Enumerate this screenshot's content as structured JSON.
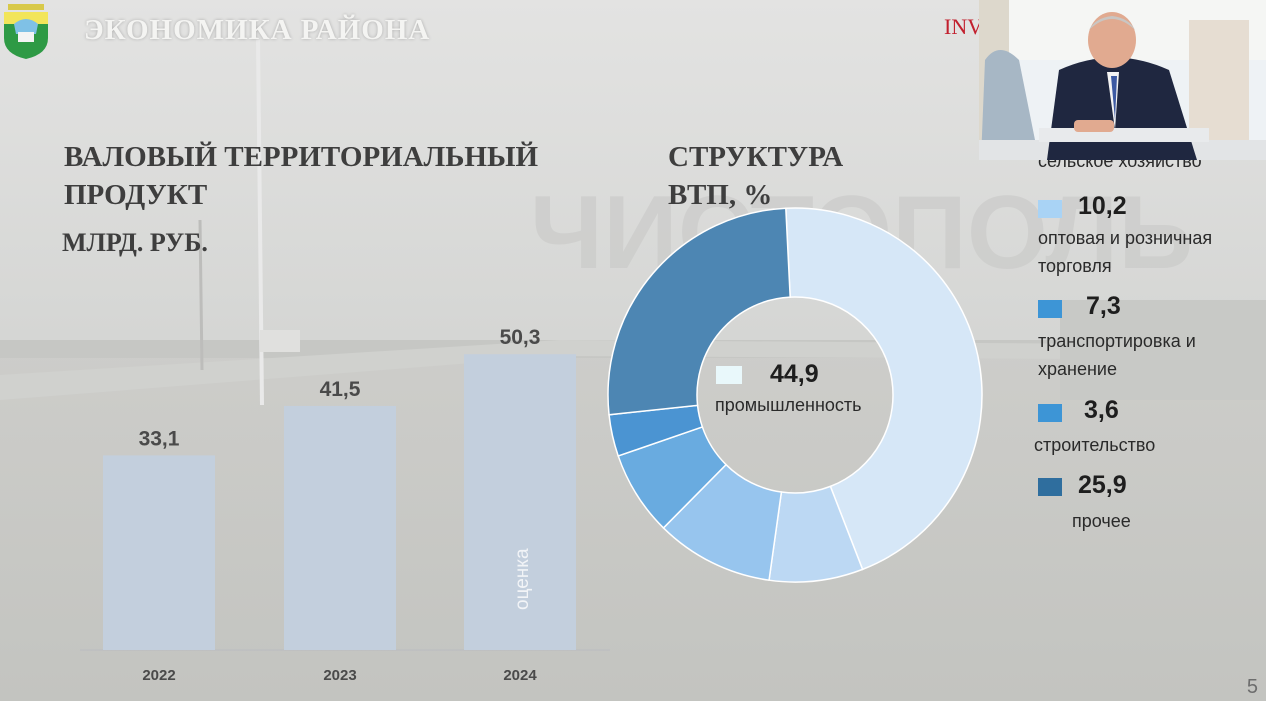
{
  "header": {
    "title": "ЭКОНОМИКА РАЙОНА",
    "brand_text": "INV"
  },
  "logo": {
    "icon": "coat-of-arms-icon"
  },
  "left_panel": {
    "heading_line1": "ВАЛОВЫЙ ТЕРРИТОРИАЛЬНЫЙ",
    "heading_line2": "ПРОДУКТ",
    "unit": "МЛРД. РУБ."
  },
  "right_panel": {
    "heading_line1": "СТРУКТУРА",
    "heading_line2": "ВТП, %"
  },
  "background": {
    "sign_text": "ЧИСТОПОЛЬ"
  },
  "chart_data": [
    {
      "type": "bar",
      "categories": [
        "2022",
        "2023",
        "2024"
      ],
      "values": [
        33.1,
        41.5,
        50.3
      ],
      "value_labels": [
        "33,1",
        "41,5",
        "50,3"
      ],
      "bar_note": "оценка",
      "note_category": "2024",
      "ylim": [
        0,
        60
      ],
      "bar_color": "#c3cfdd"
    },
    {
      "type": "pie",
      "donut": true,
      "slices": [
        {
          "label": "промышленность",
          "value": 44.9,
          "value_label": "44,9",
          "color": "#d6e7f7"
        },
        {
          "label": "сельское хозяйство",
          "value": 8.1,
          "value_label": "",
          "color": "#bcd8f3"
        },
        {
          "label": "оптовая и розничная торговля",
          "value": 10.2,
          "value_label": "10,2",
          "color": "#97c5ee"
        },
        {
          "label": "транспортировка и хранение",
          "value": 7.3,
          "value_label": "7,3",
          "color": "#69abe0"
        },
        {
          "label": "строительство",
          "value": 3.6,
          "value_label": "3,6",
          "color": "#4b94d2"
        },
        {
          "label": "прочее",
          "value": 25.9,
          "value_label": "25,9",
          "color": "#4d86b3"
        }
      ]
    }
  ],
  "legend": {
    "partial_top": "сельское хозяйство",
    "center_label": "промышленность",
    "center_value": "44,9",
    "items": [
      {
        "value": "10,2",
        "line1": "оптовая и розничная",
        "line2": "торговля",
        "color": "#a9d3f5"
      },
      {
        "value": "7,3",
        "line1": "транспортировка и",
        "line2": "хранение",
        "color": "#3d95d6"
      },
      {
        "value": "3,6",
        "line1": "строительство",
        "line2": "",
        "color": "#3d95d6"
      },
      {
        "value": "25,9",
        "line1": "прочее",
        "line2": "",
        "color": "#2f6e9e"
      }
    ]
  },
  "page": {
    "number": "5"
  }
}
